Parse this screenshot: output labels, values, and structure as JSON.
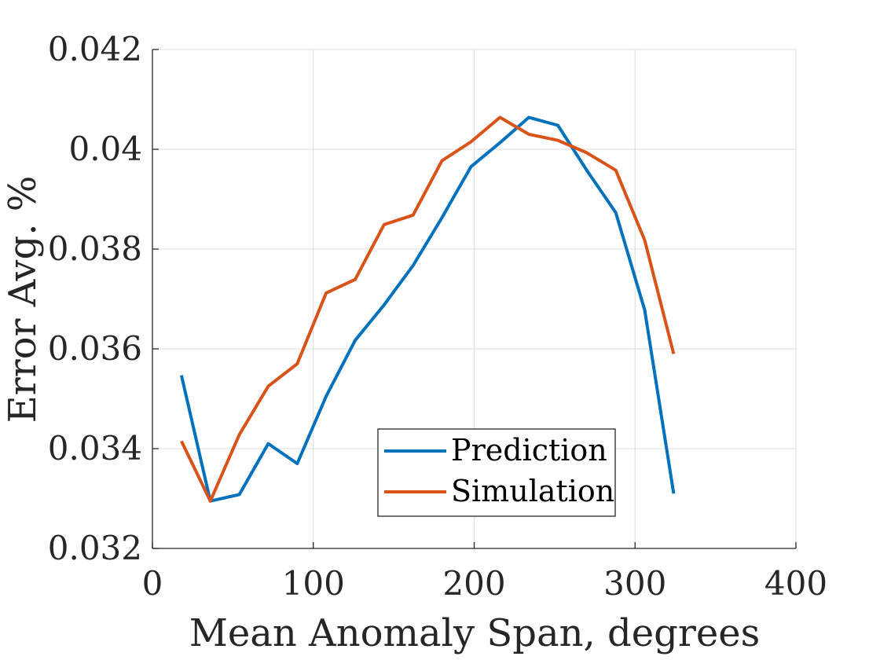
{
  "chart_data": {
    "type": "line",
    "title": "",
    "xlabel": "Mean Anomaly Span, degrees",
    "ylabel": "Error Avg. %",
    "xlim": [
      0,
      400
    ],
    "ylim": [
      0.032,
      0.042
    ],
    "xticks": [
      0,
      100,
      200,
      300,
      400
    ],
    "yticks": [
      0.032,
      0.034,
      0.036,
      0.038,
      0.04,
      0.042
    ],
    "xtick_labels": [
      "0",
      "100",
      "200",
      "300",
      "400"
    ],
    "ytick_labels": [
      "0.032",
      "0.034",
      "0.036",
      "0.038",
      "0.04",
      "0.042"
    ],
    "grid": true,
    "legend_position": "bottom-center",
    "series": [
      {
        "name": "Prediction",
        "color": "#0072BD",
        "x": [
          18,
          36,
          54,
          72,
          90,
          108,
          126,
          144,
          162,
          180,
          198,
          216,
          234,
          252,
          270,
          288,
          306,
          324
        ],
        "y": [
          0.03547,
          0.03295,
          0.03308,
          0.0341,
          0.0337,
          0.03505,
          0.03617,
          0.03688,
          0.03767,
          0.03863,
          0.03965,
          0.04013,
          0.04064,
          0.04048,
          0.03958,
          0.03873,
          0.03678,
          0.0331
        ]
      },
      {
        "name": "Simulation",
        "color": "#D95319",
        "x": [
          18,
          36,
          54,
          72,
          90,
          108,
          126,
          144,
          162,
          180,
          198,
          216,
          234,
          252,
          270,
          288,
          306,
          324
        ],
        "y": [
          0.03415,
          0.03295,
          0.03428,
          0.03525,
          0.0357,
          0.03712,
          0.03739,
          0.03849,
          0.03868,
          0.03977,
          0.04015,
          0.04064,
          0.0403,
          0.04018,
          0.03993,
          0.03958,
          0.03818,
          0.0359
        ]
      }
    ]
  }
}
